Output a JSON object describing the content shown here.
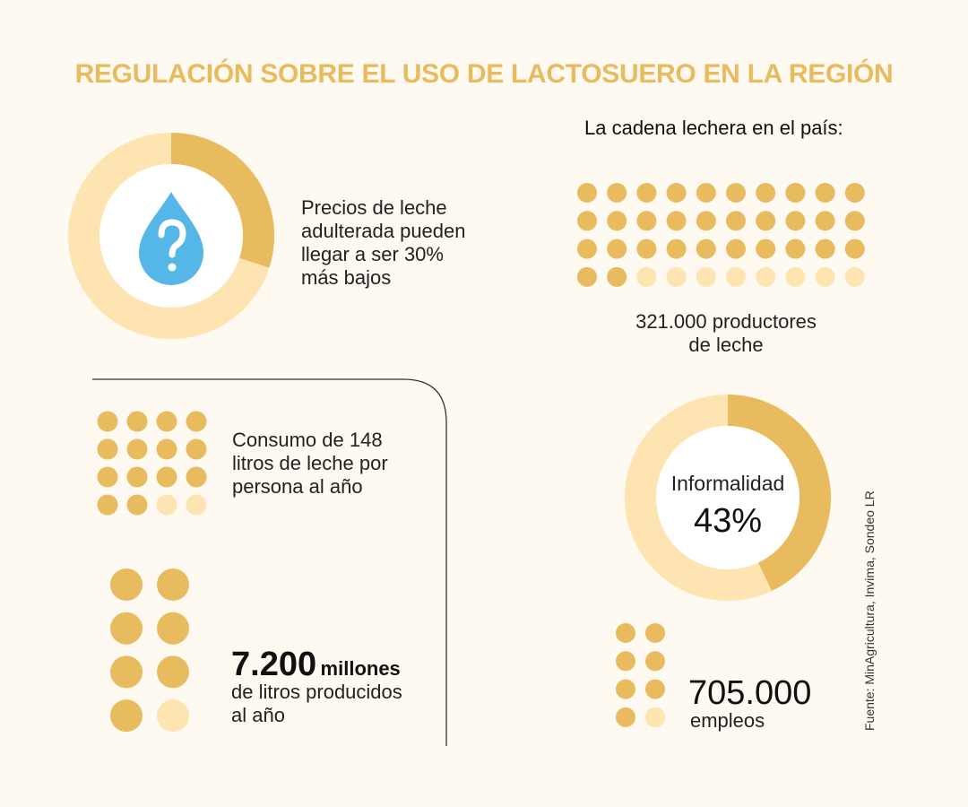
{
  "title": "REGULACIÓN SOBRE EL USO DE LACTOSUERO EN LA REGIÓN",
  "subtitle": "La cadena lechera en el país:",
  "colors": {
    "dark": "#e8bb5e",
    "light": "#fde4b0",
    "blue": "#55b6e8",
    "background": "#fef9f1"
  },
  "price_block": {
    "text": [
      "Precios de leche",
      "adulterada pueden",
      "llegar a ser 30%",
      "más bajos"
    ],
    "percent": 30,
    "icon": "water-drop-question-icon"
  },
  "producers": {
    "text": [
      "321.000 productores",
      "de leche"
    ],
    "dots_total": 40,
    "dots_filled": 32
  },
  "consumption": {
    "text": [
      "Consumo de 148",
      "litros de leche por",
      "persona al año"
    ],
    "dots_total": 16,
    "dots_filled": 14
  },
  "production": {
    "value": "7.200",
    "unit": "millones",
    "text": [
      "de litros producidos",
      "al año"
    ],
    "dots_total": 8,
    "dots_filled": 7
  },
  "informality": {
    "label": "Informalidad",
    "value": "43%",
    "percent": 43
  },
  "jobs": {
    "value": "705.000",
    "label": "empleos",
    "dots_total": 8,
    "dots_filled": 7
  },
  "source": "Fuente: MinAgricultura, Invima, Sondeo LR"
}
